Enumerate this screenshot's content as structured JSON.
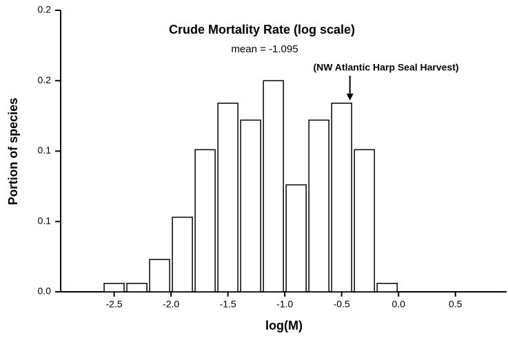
{
  "chart_data": {
    "type": "histogram",
    "title": "Crude Mortality Rate (log scale)",
    "subtitle": "mean = -1.095",
    "annotation": "(NW Atlantic Harp Seal Harvest)",
    "x_label": "log(M)",
    "y_label": "Portion of species",
    "bins": [
      -2.6,
      -2.4,
      -2.2,
      -2.0,
      -1.8,
      -1.6,
      -1.4,
      -1.2,
      -1.0,
      -0.8,
      -0.6,
      -0.4,
      -0.2,
      0.0
    ],
    "values": [
      0.006,
      0.006,
      0.023,
      0.053,
      0.101,
      0.134,
      0.122,
      0.15,
      0.076,
      0.122,
      0.134,
      0.101,
      0.006
    ],
    "color": "#ffffff",
    "edge_color": "#000000",
    "xlim": [
      -2.97,
      0.95
    ],
    "ylim": [
      0,
      0.2
    ],
    "xticks": [
      -2.5,
      {
        "value": -2.0,
        "label": "-2.0"
      },
      -1.5,
      {
        "value": -1.0,
        "label": "-1.0"
      },
      -0.5,
      {
        "value": 0,
        "label": "0.0"
      },
      0.5
    ],
    "yticks": [
      {
        "value": 0,
        "label": "0.0"
      },
      {
        "value": 0.05,
        "label": "0.1"
      },
      0.1,
      {
        "value": 0.15,
        "label": "0.2"
      },
      0.2
    ],
    "grid": false
  }
}
